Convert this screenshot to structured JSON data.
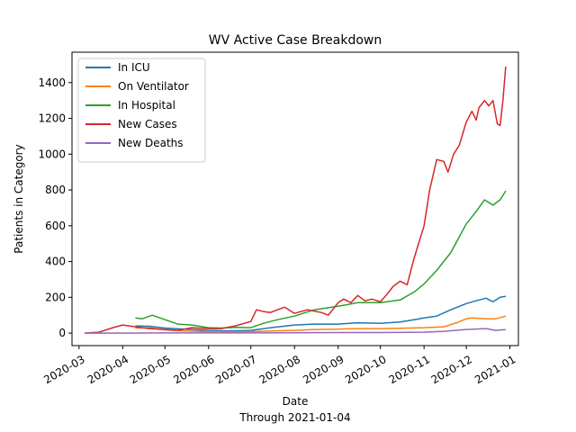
{
  "chart_data": {
    "type": "line",
    "title": "WV Active Case Breakdown",
    "xlabel": "Date",
    "xlabel_sub": "Through 2021-01-04",
    "ylabel": "Patients in Category",
    "xlim": [
      "2020-02-25",
      "2021-01-07"
    ],
    "ylim": [
      -70,
      1570
    ],
    "x_ticks": [
      "2020-03-01",
      "2020-04-01",
      "2020-05-01",
      "2020-06-01",
      "2020-07-01",
      "2020-08-01",
      "2020-09-01",
      "2020-10-01",
      "2020-11-01",
      "2020-12-01",
      "2021-01-01"
    ],
    "x_tick_labels": [
      "2020-03",
      "2020-04",
      "2020-05",
      "2020-06",
      "2020-07",
      "2020-08",
      "2020-09",
      "2020-10",
      "2020-11",
      "2020-12",
      "2021-01"
    ],
    "y_ticks": [
      0,
      200,
      400,
      600,
      800,
      1000,
      1200,
      1400
    ],
    "legend_position": "top-left",
    "grid": false,
    "series": [
      {
        "name": "In ICU",
        "color": "#1f77b4",
        "x": [
          "2020-04-10",
          "2020-04-20",
          "2020-05-01",
          "2020-05-15",
          "2020-06-01",
          "2020-06-15",
          "2020-07-01",
          "2020-07-15",
          "2020-08-01",
          "2020-08-15",
          "2020-09-01",
          "2020-09-15",
          "2020-10-01",
          "2020-10-15",
          "2020-10-25",
          "2020-11-01",
          "2020-11-10",
          "2020-11-20",
          "2020-12-01",
          "2020-12-10",
          "2020-12-15",
          "2020-12-20",
          "2020-12-25",
          "2020-12-29"
        ],
        "y": [
          40,
          38,
          28,
          22,
          15,
          12,
          15,
          30,
          45,
          50,
          50,
          58,
          55,
          62,
          75,
          85,
          95,
          130,
          165,
          185,
          195,
          175,
          200,
          205
        ]
      },
      {
        "name": "On Ventilator",
        "color": "#ff7f0e",
        "x": [
          "2020-04-10",
          "2020-04-20",
          "2020-05-01",
          "2020-05-15",
          "2020-06-01",
          "2020-06-15",
          "2020-07-01",
          "2020-07-15",
          "2020-08-01",
          "2020-08-15",
          "2020-09-01",
          "2020-09-15",
          "2020-10-01",
          "2020-10-15",
          "2020-11-01",
          "2020-11-15",
          "2020-11-25",
          "2020-12-01",
          "2020-12-05",
          "2020-12-15",
          "2020-12-22",
          "2020-12-29"
        ],
        "y": [
          28,
          30,
          18,
          12,
          8,
          6,
          8,
          12,
          15,
          20,
          22,
          25,
          25,
          27,
          30,
          35,
          60,
          80,
          85,
          80,
          80,
          95
        ]
      },
      {
        "name": "In Hospital",
        "color": "#2ca02c",
        "x": [
          "2020-04-10",
          "2020-04-15",
          "2020-04-22",
          "2020-05-01",
          "2020-05-10",
          "2020-05-20",
          "2020-06-01",
          "2020-06-10",
          "2020-06-20",
          "2020-07-01",
          "2020-07-10",
          "2020-07-20",
          "2020-08-01",
          "2020-08-15",
          "2020-09-01",
          "2020-09-15",
          "2020-10-01",
          "2020-10-15",
          "2020-10-25",
          "2020-11-01",
          "2020-11-10",
          "2020-11-20",
          "2020-12-01",
          "2020-12-08",
          "2020-12-14",
          "2020-12-20",
          "2020-12-25",
          "2020-12-29"
        ],
        "y": [
          85,
          80,
          100,
          75,
          50,
          45,
          30,
          28,
          32,
          30,
          55,
          75,
          95,
          130,
          150,
          170,
          170,
          185,
          230,
          275,
          350,
          450,
          610,
          680,
          745,
          715,
          745,
          795
        ]
      },
      {
        "name": "New Cases",
        "color": "#d62728",
        "x": [
          "2020-03-05",
          "2020-03-15",
          "2020-03-25",
          "2020-04-01",
          "2020-04-10",
          "2020-04-20",
          "2020-05-01",
          "2020-05-10",
          "2020-05-20",
          "2020-06-01",
          "2020-06-10",
          "2020-06-20",
          "2020-07-01",
          "2020-07-05",
          "2020-07-10",
          "2020-07-15",
          "2020-07-20",
          "2020-07-25",
          "2020-08-01",
          "2020-08-10",
          "2020-08-20",
          "2020-08-25",
          "2020-09-01",
          "2020-09-05",
          "2020-09-10",
          "2020-09-15",
          "2020-09-20",
          "2020-09-25",
          "2020-10-01",
          "2020-10-05",
          "2020-10-10",
          "2020-10-15",
          "2020-10-20",
          "2020-10-25",
          "2020-11-01",
          "2020-11-05",
          "2020-11-10",
          "2020-11-15",
          "2020-11-18",
          "2020-11-22",
          "2020-11-26",
          "2020-12-01",
          "2020-12-05",
          "2020-12-08",
          "2020-12-10",
          "2020-12-14",
          "2020-12-17",
          "2020-12-20",
          "2020-12-23",
          "2020-12-25",
          "2020-12-27",
          "2020-12-29"
        ],
        "y": [
          0,
          5,
          30,
          45,
          35,
          25,
          20,
          15,
          30,
          25,
          25,
          40,
          65,
          130,
          120,
          115,
          130,
          145,
          110,
          130,
          115,
          100,
          170,
          190,
          170,
          210,
          180,
          190,
          175,
          210,
          260,
          290,
          270,
          420,
          600,
          800,
          970,
          960,
          900,
          1000,
          1050,
          1180,
          1240,
          1190,
          1260,
          1300,
          1270,
          1300,
          1170,
          1160,
          1300,
          1490
        ]
      },
      {
        "name": "New Deaths",
        "color": "#9467bd",
        "x": [
          "2020-03-05",
          "2020-04-01",
          "2020-05-01",
          "2020-06-01",
          "2020-07-01",
          "2020-08-01",
          "2020-09-01",
          "2020-10-01",
          "2020-11-01",
          "2020-11-15",
          "2020-12-01",
          "2020-12-15",
          "2020-12-22",
          "2020-12-29"
        ],
        "y": [
          0,
          0,
          1,
          1,
          1,
          2,
          3,
          3,
          5,
          10,
          20,
          25,
          15,
          20
        ]
      }
    ]
  }
}
